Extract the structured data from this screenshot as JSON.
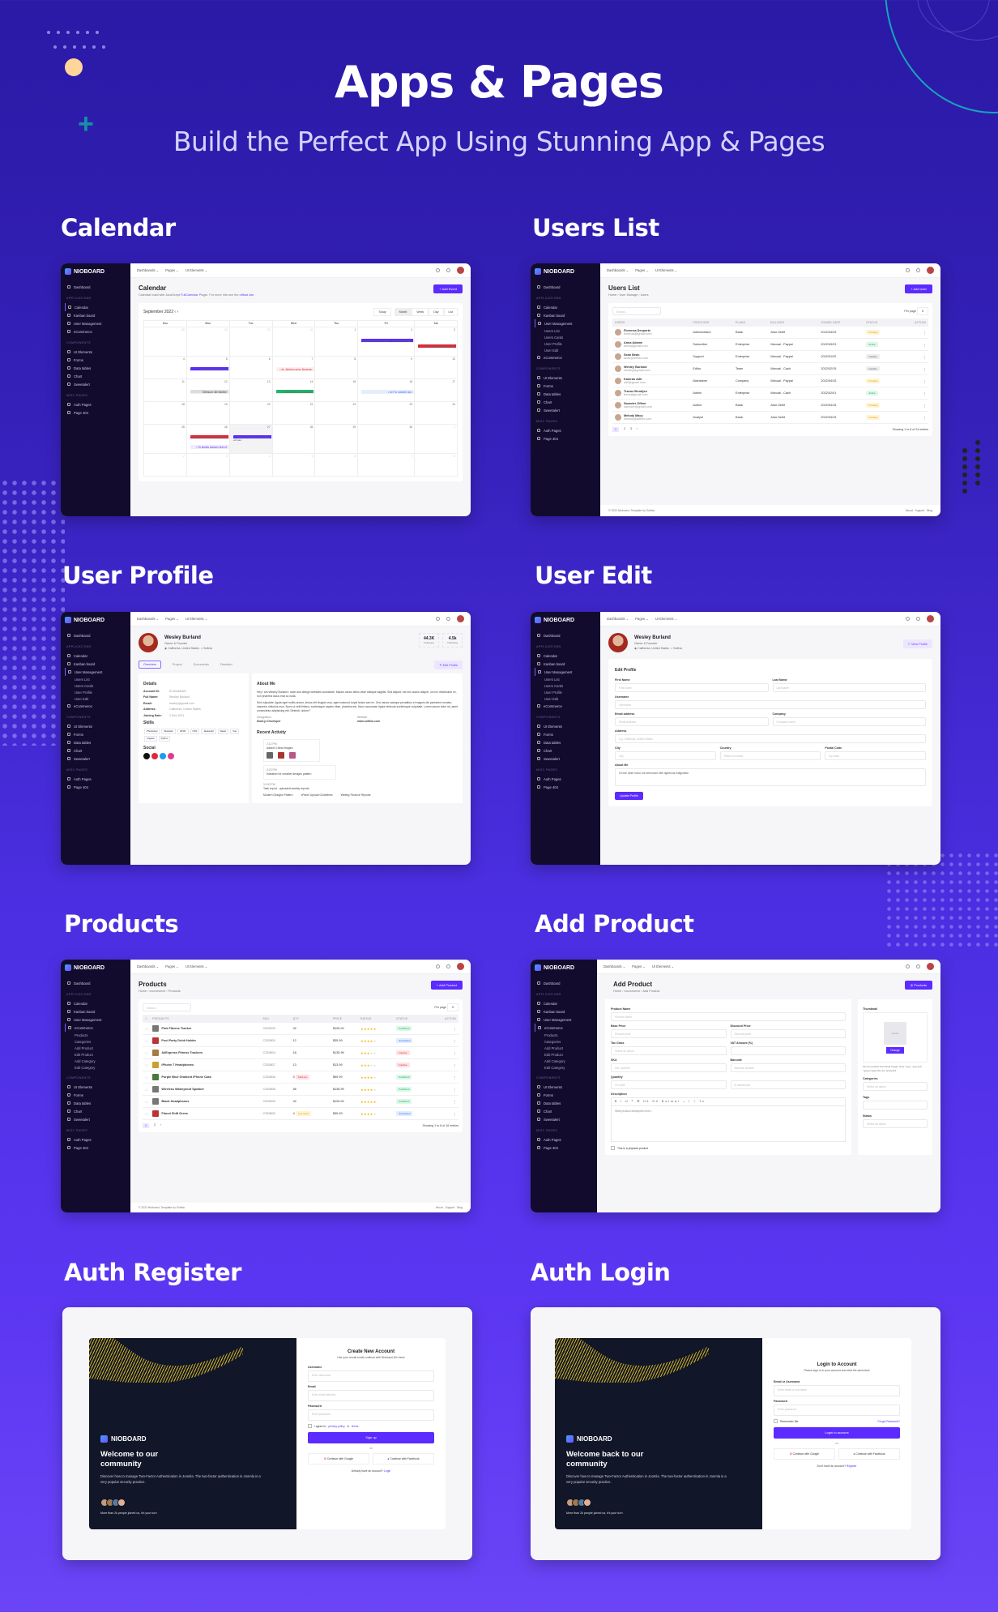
{
  "hero": {
    "title": "Apps & Pages",
    "subtitle": "Build the Perfect App Using Stunning App & Pages"
  },
  "sections": {
    "calendar": "Calendar",
    "users_list": "Users List",
    "user_profile": "User Profile",
    "user_edit": "User  Edit",
    "products": "Products",
    "add_product": "Add Product",
    "auth_register": "Auth Register",
    "auth_login": "Auth Login"
  },
  "app": {
    "brand": "NIOBOARD",
    "topnav": [
      "Dashboards ⌄",
      "Pages ⌄",
      "UI Elements ⌄"
    ],
    "nav_headers": [
      "APPLICATIONS",
      "COMPONENTS",
      "MISC PAGES"
    ],
    "nav": {
      "dashboard": "Dashboard",
      "calendar": "Calendar",
      "kanban": "Kanban board",
      "user_mgmt": "User Management",
      "ecommerce": "eCommerce",
      "ui_elements": "UI Elements",
      "forms": "Forms",
      "data_tables": "Data tables",
      "chart": "Chart",
      "sweetalert": "Sweetalert",
      "auth_pages": "Auth Pages",
      "page404": "Page 404"
    },
    "user_sub": [
      "Users List",
      "Users Cards",
      "User Profile",
      "User Edit"
    ],
    "ecom_sub": [
      "Products",
      "Categories",
      "Add Product",
      "Edit Product",
      "Add Category",
      "Edit Category"
    ],
    "footer_left": "© 2022 Nioboard. Template by Softnio",
    "footer_links": [
      "About",
      "Support",
      "Blog"
    ]
  },
  "calendar": {
    "title": "Calendar",
    "desc_pre": "Calendar build with JavaScript ",
    "desc_link1": "FullCalendar",
    "desc_mid": " Plugin. For more info see the ",
    "desc_link2": "official site.",
    "add_btn": "+ Add Event",
    "month": "September 2022",
    "views": [
      "Today",
      "Month",
      "Week",
      "Day",
      "List"
    ],
    "days": [
      "Sun",
      "Mon",
      "Tue",
      "Wed",
      "Thu",
      "Fri",
      "Sat"
    ],
    "weeks": [
      [
        "28",
        "29",
        "30",
        "31",
        "1",
        "2",
        "3"
      ],
      [
        "4",
        "5",
        "6",
        "7",
        "8",
        "9",
        "10"
      ],
      [
        "11",
        "12",
        "13",
        "14",
        "15",
        "16",
        "17"
      ],
      [
        "18",
        "19",
        "20",
        "21",
        "22",
        "23",
        "24"
      ],
      [
        "25",
        "26",
        "27",
        "28",
        "29",
        "30",
        "1"
      ],
      [
        "2",
        "3",
        "4",
        "5",
        "6",
        "7",
        "8"
      ]
    ],
    "events": {
      "e1": "Lorem Ipsum passage - Product Release",
      "e2": "• 3:30p Reader will be distr",
      "e3": "The leap into electronic",
      "e4": "• 4p Jidehen gogu Nuperen",
      "e5": "Sitimuon nib Nepibe",
      "e6": "• 3:30p Rafifon na horome",
      "e7": "• 4p For sample doc",
      "e8": "• 3a Rujfogine kahmbi Nashe",
      "e9": "Piece of classical Latin litet",
      "e10": "• To simply dummy text of",
      "more": "+2 more"
    }
  },
  "users": {
    "title": "Users List",
    "breadcrumb": "Home  ›  User Manage  ›  Users",
    "add_btn": "+ Add User",
    "search_placeholder": "Search...",
    "per_page_label": "Per page",
    "per_page": "5",
    "columns": [
      "USERS",
      "POSITIONS",
      "PLANS",
      "BILLINGS",
      "JOINED DATE",
      "STATUS",
      "ACTION"
    ],
    "rows": [
      {
        "name": "Florenza Desporte",
        "email": "florenza@gmail.com",
        "pos": "Administrator",
        "plan": "Basic",
        "bill": "Auto Debit",
        "date": "2022/04/29",
        "status": "Pending"
      },
      {
        "name": "Anna Adame",
        "email": "anna@gmail.com",
        "pos": "Subscriber",
        "plan": "Enterprise",
        "bill": "Manual - Paypal",
        "date": "2022/03/23",
        "status": "Active"
      },
      {
        "name": "Sean Bean",
        "email": "sean@dellito.com",
        "pos": "Support",
        "plan": "Enterprise",
        "bill": "Manual - Paypal",
        "date": "2022/01/22",
        "status": "Inactive"
      },
      {
        "name": "Wesley Burland",
        "email": "wesley@gmail.com",
        "pos": "Editor",
        "plan": "Team",
        "bill": "Manual - Cash",
        "date": "2022/02/15",
        "status": "Inactive"
      },
      {
        "name": "Kamran Adil",
        "email": "adil@gmail.com",
        "pos": "Maintainer",
        "plan": "Company",
        "bill": "Manual - Paypal",
        "date": "2022/04/15",
        "status": "Pending"
      },
      {
        "name": "Tracus Bruntjen",
        "email": "treus@gmail.com",
        "pos": "Admin",
        "plan": "Enterprise",
        "bill": "Manual - Cash",
        "date": "2022/02/01",
        "status": "Active"
      },
      {
        "name": "Saunder Offner",
        "email": "saunder@gmail.com",
        "pos": "Author",
        "plan": "Basic",
        "bill": "Auto Debit",
        "date": "2022/04/15",
        "status": "Pending"
      },
      {
        "name": "Melody Macy",
        "email": "melody@altbox.com",
        "pos": "Analyst",
        "plan": "Basic",
        "bill": "Auto Debit",
        "date": "2022/04/15",
        "status": "Pending"
      }
    ],
    "pages": [
      "1",
      "2",
      "3",
      "›"
    ],
    "showing": "Showing 1 to 8 of 24 entries"
  },
  "profile": {
    "name": "Wesley Burland",
    "role": "Owner & Founder",
    "location": "California, United States",
    "company": "Softnio",
    "followers": "44.3K",
    "followers_label": "Followers",
    "following": "4.5k",
    "following_label": "Following",
    "tabs": [
      "Overview",
      "Project",
      "Documents",
      "Disabled"
    ],
    "edit_btn": "Edit Profile",
    "details_title": "Details",
    "details": [
      {
        "k": "Account ID:",
        "v": "ID-84458429"
      },
      {
        "k": "Full Name:",
        "v": "Wesley Burland"
      },
      {
        "k": "Email:",
        "v": "wesley@gmail.com"
      },
      {
        "k": "Address:",
        "v": "California, United States"
      },
      {
        "k": "Joining Date:",
        "v": "2 Dec 2021"
      }
    ],
    "skills_title": "Skills",
    "skills": [
      "Photoshop",
      "Illustrator",
      "HTML",
      "CSS",
      "Javascript",
      "React",
      "Vue",
      "Angular",
      "Python"
    ],
    "social_title": "Social",
    "about_title": "About Me",
    "about1": "Hey I am Wesley Burland i code and design websites worldwide. Mauris varius tellus vitae tristique sagittis. Sed aliquet, est nec auctor aliquet, orci ex vestibulum ex, non pharetra lacus erat ac nulla.",
    "about2": "Sed vulputate, ligula eget mollis auctor, lectus elit feugiat urna, eget euismod turpis lectus sed ex. Orci varius natoque penatibus et magnis dis parturient montes, nascetur ridiculus mus. Nunc ut velit finibus, scelerisque sapien vitae, pharetra est. Nunc accumsan ligula vehicula scelerisque vulputate. Lorem ipsum dolor sit, amet consectetur adipisicing elit. Deleniti, dolore?",
    "designation_label": "Designation",
    "designation": "Node.js Developer",
    "website_label": "Website",
    "website": "www.softnio.com",
    "activity_title": "Recent Activity",
    "activity": [
      {
        "time": "2:12 PM",
        "text": "Added 3 New Images"
      },
      {
        "time": "4:23 PM",
        "text": "Invitation for creative designs pattern"
      },
      {
        "time": "10:30 PM",
        "text": "Task report - uploaded weekly reports"
      }
    ],
    "files": [
      "Modern Designs Pattern",
      "cPanel Upload Guidelines",
      "Weekly Finance Reports"
    ]
  },
  "edit": {
    "view_btn": "View Profile",
    "title": "Edit Profile",
    "first_name_label": "First Name",
    "first_name_ph": "First name",
    "last_name_label": "Last Name",
    "last_name_ph": "Last name",
    "username_label": "Username",
    "username_ph": "Username",
    "email_label": "Email address",
    "email_ph": "Email address",
    "company_label": "Company",
    "company_ph": "Company name",
    "address_label": "Address",
    "address_ph": "e.g. California, United States",
    "city_label": "City",
    "city_ph": "City",
    "country_label": "Country",
    "country_ph": "Select a country",
    "postal_label": "Postal Code",
    "postal_ph": "Zip code",
    "about_label": "About Me",
    "about_val": "On the other hand, we denounce with righteous indignation",
    "update_btn": "Update Profile"
  },
  "products": {
    "title": "Products",
    "breadcrumb": "Home  ›  ecommerce  ›  Products",
    "add_btn": "+ Add Product",
    "search_placeholder": "Search...",
    "per_page_label": "Per page",
    "per_page": "5",
    "columns": [
      "PRODUCTS",
      "SKU",
      "QTY",
      "PRICE",
      "RATING",
      "STATUS",
      "ACTION"
    ],
    "rows": [
      {
        "name": "Pink Fitness Tracker",
        "sku": "C633009",
        "qty": "42",
        "qtytag": "",
        "price": "$126.00",
        "rating": 5,
        "status": "Published"
      },
      {
        "name": "Pool Party Drink Holder",
        "sku": "C253800",
        "qty": "12",
        "qtytag": "",
        "price": "$35.99",
        "rating": 4,
        "status": "Scheduled"
      },
      {
        "name": "AliExpress Fitness Trackers",
        "sku": "C253804",
        "qty": "18",
        "qtytag": "",
        "price": "$135.99",
        "rating": 3,
        "status": "Inactive"
      },
      {
        "name": "iPhone 7 Headphones",
        "sku": "C253807",
        "qty": "13",
        "qtytag": "",
        "price": "$13.99",
        "rating": 3,
        "status": "Inactive"
      },
      {
        "name": "Purple Blue Gradient iPhone Case",
        "sku": "C253808",
        "qty": "0",
        "qtytag": "Sold out",
        "price": "$55.99",
        "rating": 4,
        "status": "Published"
      },
      {
        "name": "Wireless Waterproof Speaker",
        "sku": "C253808",
        "qty": "58",
        "qtytag": "",
        "price": "$138.99",
        "rating": 4,
        "status": "Published"
      },
      {
        "name": "Black Headphones",
        "sku": "C633009",
        "qty": "42",
        "qtytag": "",
        "price": "$126.00",
        "rating": 5,
        "status": "Published"
      },
      {
        "name": "Flared Shift Dress",
        "sku": "C253800",
        "qty": "4",
        "qtytag": "Low stock",
        "price": "$35.99",
        "rating": 4,
        "status": "Scheduled"
      }
    ],
    "pages": [
      "1",
      "2",
      "›"
    ],
    "showing": "Showing 1 to 8 of 16 entries"
  },
  "add_product": {
    "title": "Add Product",
    "breadcrumb": "Home  ›  ecommerce  ›  Add Product",
    "products_btn": "Products",
    "name_label": "Product Name",
    "name_ph": "Product Name",
    "base_label": "Base Price",
    "base_ph": "Product price",
    "disc_label": "Discount Price",
    "disc_ph": "Discount price",
    "tax_label": "Tax Class",
    "tax_ph": "Select an option",
    "vat_label": "VAT Amount (%)",
    "sku_label": "SKU",
    "sku_ph": "SKU number",
    "barcode_label": "Barcode",
    "barcode_ph": "Barcode number",
    "qty_label": "Quantity",
    "qty_ph": "On shelf",
    "qty2_ph": "In warehouse",
    "desc_label": "Description",
    "editor_toolbar": "B I U  ❞ ☰  H1 H2 Normal ⌄  I  ⌶  Tx",
    "desc_ph": "Write product description here...",
    "physical": "This is a physical product",
    "thumb_label": "Thumbnail",
    "thumb_ph": "Avatar",
    "change_btn": "Change",
    "thumb_help": "Set the product thumbnail image. Only *.png, *.jpg and *.jpeg image files are accepted.",
    "cat_label": "Categories",
    "cat_ph": "Select an option",
    "tags_label": "Tags",
    "status_label": "Status",
    "status_ph": "Select an option"
  },
  "register": {
    "brand": "NIOBOARD",
    "welcome": "Welcome to our community",
    "desc": "Discover how to manage Two-Factor Authentication in Joomla. The two-factor authentication in Joomla is a very popular security practice.",
    "joined": "More than 2k people joined us, it's your turn",
    "title": "Create New Account",
    "subtitle": "Use your remail email continue with Nioboard (it's free)!",
    "username_label": "Username",
    "username_ph": "Enter username",
    "email_label": "Email",
    "email_ph": "Enter email address",
    "password_label": "Password",
    "password_ph": "Enter password",
    "agree_pre": "I agree to ",
    "privacy": "privacy policy",
    "amp": " & ",
    "terms": "terms",
    "signup_btn": "Sign up",
    "or": "OR",
    "google": "Continue with Google",
    "facebook": "Continue with Facebook",
    "have_account": "Already have an account? ",
    "login_link": "Login"
  },
  "login": {
    "brand": "NIOBOARD",
    "welcome": "Welcome back to our community",
    "desc": "Discover how to manage Two-Factor Authentication in Joomla. The two-factor authentication in Joomla is a very popular security practice.",
    "joined": "More than 2k people joined us, it's your turn",
    "title": "Login to Account",
    "subtitle": "Please sign-in to your account and start the adventure",
    "email_label": "Email or Username",
    "email_ph": "Enter email or username",
    "password_label": "Password",
    "password_ph": "Enter password",
    "remember": "Remember Me",
    "forgot": "Forgot Password?",
    "login_btn": "Login to account",
    "or": "OR",
    "google": "Continue with Google",
    "facebook": "Continue with Facebook",
    "no_account": "Don't have an account? ",
    "register_link": "Register"
  },
  "colors": {
    "background_top": "#2a1aa6",
    "background_bottom": "#6a45f6",
    "accent": "#5b2bff",
    "sidebar": "#120b2e",
    "auth_dark": "#111728"
  }
}
